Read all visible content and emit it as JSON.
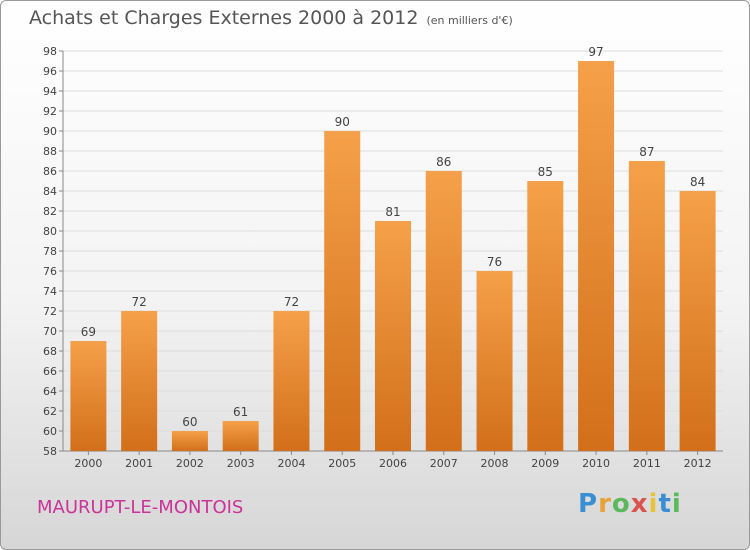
{
  "chart_data": {
    "type": "bar",
    "title": "Achats et Charges Externes 2000 à 2012",
    "subtitle": "(en milliers d'€)",
    "categories": [
      "2000",
      "2001",
      "2002",
      "2003",
      "2004",
      "2005",
      "2006",
      "2007",
      "2008",
      "2009",
      "2010",
      "2011",
      "2012"
    ],
    "values": [
      69,
      72,
      60,
      61,
      72,
      90,
      81,
      86,
      76,
      85,
      97,
      87,
      84
    ],
    "value_labels": [
      "69",
      "72",
      "60",
      "61",
      "72",
      "90",
      "81",
      "86",
      "76",
      "85",
      "97",
      "87",
      "84"
    ],
    "ylim": [
      58,
      98
    ],
    "yticks": [
      "58",
      "60",
      "62",
      "64",
      "66",
      "68",
      "70",
      "72",
      "74",
      "76",
      "78",
      "80",
      "82",
      "84",
      "86",
      "88",
      "90",
      "92",
      "94",
      "96",
      "98"
    ],
    "grid": true,
    "bar_color": "#f5a04a",
    "bar_color_dark": "#d26f1a"
  },
  "footer": {
    "place_name": "MAURUPT-LE-MONTOIS",
    "logo_letters": [
      "P",
      "r",
      "o",
      "x",
      "i",
      "t",
      "i"
    ],
    "logo_colors": [
      "#3a8fd4",
      "#e8a23a",
      "#5cb85c",
      "#d9534f",
      "#e8c23a",
      "#3a8fd4",
      "#5cb85c"
    ]
  }
}
